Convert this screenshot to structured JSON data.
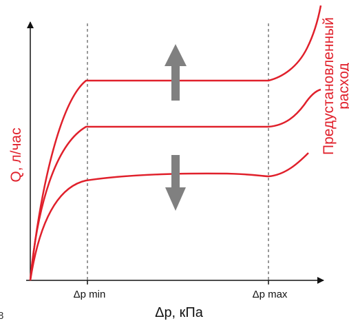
{
  "diagram": {
    "colors": {
      "curve": "#e0202b",
      "axis": "#111111",
      "arrow": "#808080",
      "guide": "#333333",
      "text_red": "#e0202b",
      "text_dark": "#111111"
    },
    "x_axis": {
      "title": "Δp, кПа",
      "tick_min": "Δp min",
      "tick_max": "Δp max"
    },
    "y_axis": {
      "title": "Q, л/час"
    },
    "annotation": {
      "line1": "Предустановленный",
      "line2": "расход"
    },
    "corner_mark": "8",
    "curves": [
      {
        "name": "upper",
        "level": "high"
      },
      {
        "name": "middle",
        "level": "medium"
      },
      {
        "name": "lower",
        "level": "low"
      }
    ],
    "arrows": [
      {
        "name": "up",
        "direction": "up"
      },
      {
        "name": "down",
        "direction": "down"
      }
    ]
  }
}
